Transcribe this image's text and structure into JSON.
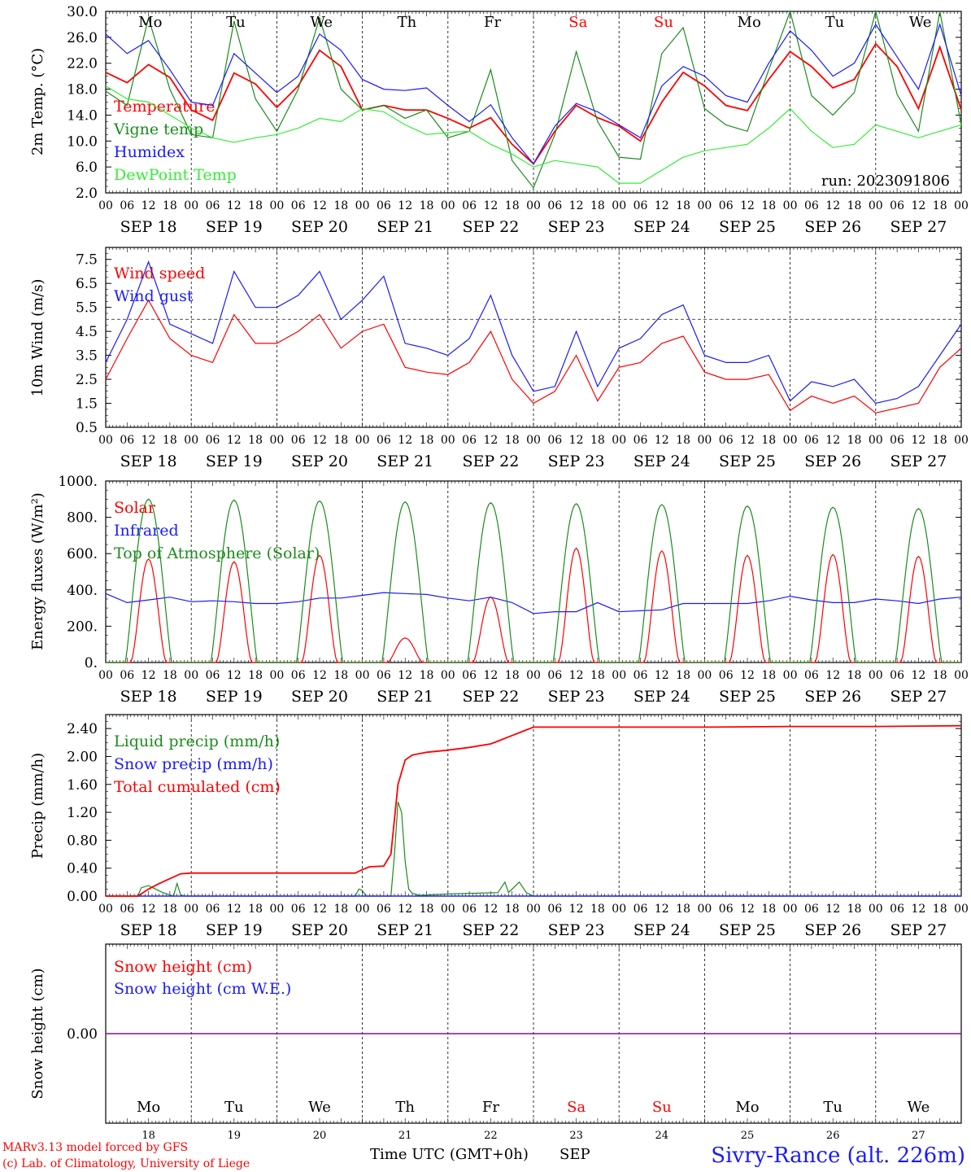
{
  "colors": {
    "red": "#ff0000",
    "darkgreen": "#1a8c1a",
    "blue": "#1a1aff",
    "lightgreen": "#33ee33",
    "purple": "#8000a0",
    "axis": "#000000"
  },
  "days": {
    "labels": [
      "SEP 18",
      "SEP 19",
      "SEP 20",
      "SEP 21",
      "SEP 22",
      "SEP 23",
      "SEP 24",
      "SEP 25",
      "SEP 26",
      "SEP 27"
    ],
    "weekdays": [
      "Mo",
      "Tu",
      "We",
      "Th",
      "Fr",
      "Sa",
      "Su",
      "Mo",
      "Tu",
      "We"
    ],
    "weekday_colors": [
      "#000000",
      "#000000",
      "#000000",
      "#000000",
      "#000000",
      "#ff0000",
      "#ff0000",
      "#000000",
      "#000000",
      "#000000"
    ],
    "numbers": [
      "18",
      "19",
      "20",
      "21",
      "22",
      "23",
      "24",
      "25",
      "26",
      "27"
    ],
    "hour_ticks": [
      "00",
      "06",
      "12",
      "18"
    ],
    "end_tick": "00"
  },
  "footer": {
    "model": "MARv3.13 model forced by GFS",
    "lab": "(c) Lab. of Climatology, University of Liege",
    "time_label": "Time UTC (GMT+0h)",
    "month": "SEP",
    "station": "Sivry-Rance (alt. 226m)"
  },
  "chart_data": [
    {
      "type": "line",
      "ylabel": "2m Temp. (°C)",
      "ylim": [
        2,
        30
      ],
      "yticks": [
        "2.0",
        "6.0",
        "10.0",
        "14.0",
        "18.0",
        "22.0",
        "26.0",
        "30.0"
      ],
      "annotation": "run: 2023091806",
      "x_unit": "hours since SEP 18 00 UTC",
      "series": [
        {
          "name": "Temperature",
          "color": "#ff0000",
          "x": [
            0,
            6,
            12,
            18,
            24,
            30,
            36,
            42,
            48,
            54,
            60,
            66,
            72,
            78,
            84,
            90,
            96,
            102,
            108,
            114,
            120,
            126,
            132,
            138,
            144,
            150,
            156,
            162,
            168,
            174,
            180,
            186,
            192,
            198,
            204,
            210,
            216,
            222,
            228,
            234,
            240
          ],
          "y": [
            20.6,
            19,
            21.8,
            19.8,
            14.8,
            13.2,
            20.5,
            18.8,
            15.2,
            18.5,
            24.0,
            21.5,
            14.8,
            15.5,
            14.8,
            14.8,
            13.5,
            12.0,
            13.6,
            9.5,
            6.5,
            11.5,
            15.5,
            13.6,
            12.3,
            10.0,
            16.0,
            20.6,
            18.5,
            15.5,
            14.7,
            19.5,
            23.8,
            21.5,
            18.2,
            19.5,
            25.0,
            21.5,
            15.0,
            24.5,
            14.8
          ]
        },
        {
          "name": "Vigne temp",
          "color": "#1a8c1a",
          "x": [
            0,
            6,
            12,
            18,
            24,
            30,
            36,
            42,
            48,
            54,
            60,
            66,
            72,
            78,
            84,
            90,
            96,
            102,
            108,
            114,
            120,
            126,
            132,
            138,
            144,
            150,
            156,
            162,
            168,
            174,
            180,
            186,
            192,
            198,
            204,
            210,
            216,
            222,
            228,
            234,
            240
          ],
          "y": [
            17.7,
            15.5,
            29,
            18,
            11,
            10.5,
            28.5,
            16.5,
            11.5,
            18,
            29,
            18,
            14.8,
            15.5,
            13.5,
            14.8,
            10.5,
            11.5,
            21,
            7,
            2.8,
            11,
            23.8,
            13,
            7.5,
            7.2,
            23.5,
            27.5,
            15,
            12.5,
            11.5,
            21,
            30,
            17,
            14,
            17.5,
            30,
            17.2,
            11.5,
            30,
            12.5
          ]
        },
        {
          "name": "Humidex",
          "color": "#1a1aff",
          "x": [
            0,
            6,
            12,
            18,
            24,
            30,
            36,
            42,
            48,
            54,
            60,
            66,
            72,
            78,
            84,
            90,
            96,
            102,
            108,
            114,
            120,
            126,
            132,
            138,
            144,
            150,
            156,
            162,
            168,
            174,
            180,
            186,
            192,
            198,
            204,
            210,
            216,
            222,
            228,
            234,
            240
          ],
          "y": [
            26.5,
            23.5,
            25.5,
            21,
            16,
            15.5,
            23.5,
            20.5,
            17.5,
            20.0,
            26.5,
            24,
            19.5,
            18,
            17.8,
            18.2,
            15.5,
            13,
            15.6,
            10.5,
            6.5,
            12.3,
            15.8,
            14.5,
            12.5,
            10.5,
            18.5,
            21.5,
            20,
            17,
            16,
            22,
            27,
            24,
            20,
            22,
            28,
            23,
            18,
            28,
            17
          ]
        },
        {
          "name": "DewPoint Temp",
          "color": "#33ee33",
          "x": [
            0,
            6,
            12,
            18,
            24,
            30,
            36,
            42,
            48,
            54,
            60,
            66,
            72,
            78,
            84,
            90,
            96,
            102,
            108,
            114,
            120,
            126,
            132,
            138,
            144,
            150,
            156,
            162,
            168,
            174,
            180,
            186,
            192,
            198,
            204,
            210,
            216,
            222,
            228,
            234,
            240
          ],
          "y": [
            18.5,
            16.5,
            16,
            14,
            12,
            10.5,
            9.8,
            10.5,
            11,
            12,
            13.5,
            13,
            15,
            14.5,
            12.5,
            11,
            11.3,
            11.5,
            9.5,
            8,
            6,
            7,
            6.5,
            6,
            3.5,
            3.5,
            5.5,
            7.5,
            8.5,
            9,
            9.5,
            12,
            15,
            11.5,
            9,
            9.5,
            12.5,
            11.5,
            10.5,
            11.5,
            12.5
          ]
        }
      ]
    },
    {
      "type": "line",
      "ylabel": "10m Wind (m/s)",
      "ylim": [
        0.5,
        8.0
      ],
      "yticks": [
        "0.5",
        "1.5",
        "2.5",
        "3.5",
        "4.5",
        "5.5",
        "6.5",
        "7.5"
      ],
      "reference_line": 5.0,
      "series": [
        {
          "name": "Wind speed",
          "color": "#ff0000",
          "x": [
            0,
            6,
            12,
            18,
            24,
            30,
            36,
            42,
            48,
            54,
            60,
            66,
            72,
            78,
            84,
            90,
            96,
            102,
            108,
            114,
            120,
            126,
            132,
            138,
            144,
            150,
            156,
            162,
            168,
            174,
            180,
            186,
            192,
            198,
            204,
            210,
            216,
            222,
            228,
            234,
            240
          ],
          "y": [
            2.5,
            4.2,
            5.8,
            4.2,
            3.5,
            3.2,
            5.2,
            4.0,
            4.0,
            4.5,
            5.2,
            3.8,
            4.5,
            4.8,
            3.0,
            2.8,
            2.7,
            3.2,
            4.5,
            2.5,
            1.5,
            2.0,
            3.5,
            1.6,
            3.0,
            3.2,
            4.0,
            4.3,
            2.8,
            2.5,
            2.5,
            2.7,
            1.2,
            1.8,
            1.5,
            1.8,
            1.1,
            1.3,
            1.5,
            3.0,
            3.8
          ]
        },
        {
          "name": "Wind gust",
          "color": "#1a1aff",
          "x": [
            0,
            6,
            12,
            18,
            24,
            30,
            36,
            42,
            48,
            54,
            60,
            66,
            72,
            78,
            84,
            90,
            96,
            102,
            108,
            114,
            120,
            126,
            132,
            138,
            144,
            150,
            156,
            162,
            168,
            174,
            180,
            186,
            192,
            198,
            204,
            210,
            216,
            222,
            228,
            234,
            240
          ],
          "y": [
            3.2,
            5.0,
            7.4,
            4.8,
            4.4,
            4.0,
            7.0,
            5.5,
            5.5,
            6.0,
            7.0,
            5.0,
            5.8,
            6.8,
            4.0,
            3.8,
            3.5,
            4.2,
            6.0,
            3.5,
            2.0,
            2.2,
            4.5,
            2.2,
            3.8,
            4.2,
            5.2,
            5.6,
            3.5,
            3.2,
            3.2,
            3.5,
            1.6,
            2.4,
            2.2,
            2.5,
            1.5,
            1.7,
            2.2,
            3.5,
            4.8
          ]
        }
      ]
    },
    {
      "type": "line",
      "ylabel": "Energy fluxes (W/m²)",
      "ylim": [
        0,
        1000
      ],
      "yticks": [
        "0.",
        "200.",
        "400.",
        "600.",
        "800.",
        "1000."
      ],
      "series": [
        {
          "name": "Solar",
          "color": "#ff0000",
          "peak_hour": 12,
          "daily_peak": [
            570,
            555,
            590,
            135,
            360,
            630,
            615,
            590,
            595,
            585
          ]
        },
        {
          "name": "Infrared",
          "color": "#1a1aff",
          "x": [
            0,
            6,
            12,
            18,
            24,
            30,
            36,
            42,
            48,
            54,
            60,
            66,
            72,
            78,
            84,
            90,
            96,
            102,
            108,
            114,
            120,
            126,
            132,
            138,
            144,
            150,
            156,
            162,
            168,
            174,
            180,
            186,
            192,
            198,
            204,
            210,
            216,
            222,
            228,
            234,
            240
          ],
          "y": [
            380,
            330,
            345,
            360,
            335,
            340,
            335,
            325,
            325,
            335,
            355,
            355,
            370,
            385,
            380,
            375,
            355,
            340,
            360,
            330,
            270,
            280,
            280,
            330,
            280,
            285,
            290,
            325,
            325,
            325,
            325,
            340,
            365,
            345,
            330,
            330,
            350,
            340,
            325,
            350,
            360
          ]
        },
        {
          "name": "Top of Atmosphere (Solar)",
          "color": "#1a8c1a",
          "peak_hour": 12,
          "daily_peak": [
            900,
            895,
            890,
            885,
            880,
            875,
            870,
            862,
            855,
            848
          ]
        }
      ]
    },
    {
      "type": "line",
      "ylabel": "Precip (mm/h)",
      "ylim": [
        0,
        2.6
      ],
      "yticks": [
        "0.00",
        "0.40",
        "0.80",
        "1.20",
        "1.60",
        "2.00",
        "2.40"
      ],
      "series": [
        {
          "name": "Liquid precip (mm/h)",
          "color": "#1a8c1a",
          "x": [
            0,
            9,
            10,
            12,
            14,
            16,
            19,
            20,
            21,
            22,
            70,
            71,
            72,
            73,
            74,
            80,
            81,
            82,
            83,
            84,
            85,
            86,
            88,
            96,
            110,
            112,
            113,
            114,
            116,
            118,
            120,
            240
          ],
          "y": [
            0,
            0,
            0.12,
            0.15,
            0.1,
            0.05,
            0,
            0.18,
            0.02,
            0,
            0,
            0.1,
            0.08,
            0,
            0,
            0,
            0.6,
            1.35,
            1.2,
            0.5,
            0.1,
            0.04,
            0.01,
            0.03,
            0.05,
            0.2,
            0.05,
            0.1,
            0.2,
            0.05,
            0,
            0
          ]
        },
        {
          "name": "Snow precip (mm/h)",
          "color": "#1a1aff",
          "x": [
            0,
            240
          ],
          "y": [
            0,
            0
          ]
        },
        {
          "name": "Total cumulated (cm)",
          "color": "#ff0000",
          "x": [
            0,
            9,
            12,
            15,
            18,
            21,
            24,
            48,
            60,
            70,
            72,
            74,
            78,
            80,
            82,
            84,
            86,
            90,
            96,
            102,
            108,
            110,
            114,
            120,
            144,
            168,
            192,
            216,
            240
          ],
          "y": [
            0,
            0,
            0.1,
            0.18,
            0.25,
            0.32,
            0.33,
            0.33,
            0.33,
            0.33,
            0.38,
            0.42,
            0.43,
            0.6,
            1.6,
            1.95,
            2.02,
            2.06,
            2.09,
            2.13,
            2.18,
            2.22,
            2.3,
            2.42,
            2.42,
            2.42,
            2.43,
            2.43,
            2.44
          ]
        }
      ]
    },
    {
      "type": "line",
      "ylabel": "Snow height (cm)",
      "yticks": [
        "0.00"
      ],
      "series": [
        {
          "name": "Snow height (cm)",
          "color": "#ff0000",
          "x": [
            0,
            240
          ],
          "y": [
            0,
            0
          ]
        },
        {
          "name": "Snow height (cm W.E.)",
          "color": "#1a1aff",
          "x": [
            0,
            240
          ],
          "y": [
            0,
            0
          ]
        }
      ]
    }
  ]
}
